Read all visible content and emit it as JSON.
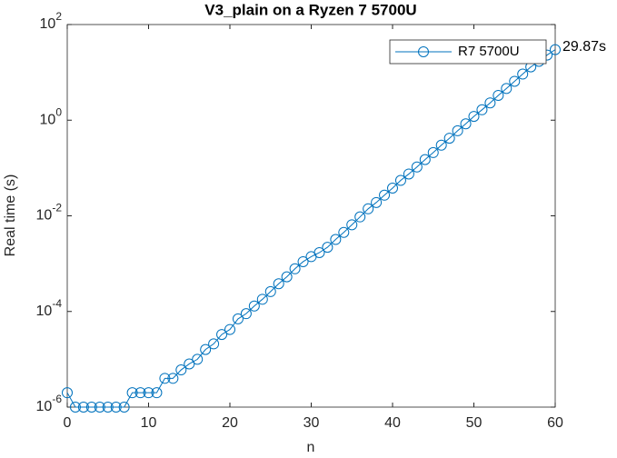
{
  "chart_data": {
    "type": "line",
    "title": "V3_plain on a Ryzen 7 5700U",
    "xlabel": "n",
    "ylabel": "Real time (s)",
    "x": [
      0,
      1,
      2,
      3,
      4,
      5,
      6,
      7,
      8,
      9,
      10,
      11,
      12,
      13,
      14,
      15,
      16,
      17,
      18,
      19,
      20,
      21,
      22,
      23,
      24,
      25,
      26,
      27,
      28,
      29,
      30,
      31,
      32,
      33,
      34,
      35,
      36,
      37,
      38,
      39,
      40,
      41,
      42,
      43,
      44,
      45,
      46,
      47,
      48,
      49,
      50,
      51,
      52,
      53,
      54,
      55,
      56,
      57,
      58,
      59,
      60
    ],
    "series": [
      {
        "name": "R7 5700U",
        "color": "#0072bd",
        "values": [
          2e-06,
          1e-06,
          1e-06,
          1e-06,
          1e-06,
          1e-06,
          1e-06,
          1e-06,
          2e-06,
          2e-06,
          2e-06,
          2e-06,
          4e-06,
          4e-06,
          6e-06,
          8e-06,
          1e-05,
          1.6e-05,
          2.1e-05,
          3.3e-05,
          4.2e-05,
          7e-05,
          9e-05,
          0.00013,
          0.00018,
          0.00026,
          0.00038,
          0.00053,
          0.00078,
          0.0011,
          0.0014,
          0.0017,
          0.0022,
          0.0032,
          0.0045,
          0.0065,
          0.0095,
          0.014,
          0.019,
          0.027,
          0.038,
          0.055,
          0.075,
          0.105,
          0.15,
          0.21,
          0.3,
          0.42,
          0.6,
          0.84,
          1.2,
          1.65,
          2.3,
          3.3,
          4.6,
          6.5,
          9.2,
          13,
          17,
          23,
          29.87
        ]
      }
    ],
    "annotation": "29.87s",
    "xlim": [
      0,
      60
    ],
    "xticks": [
      0,
      10,
      20,
      30,
      40,
      50,
      60
    ],
    "ylim": [
      1e-06,
      100
    ],
    "ylog": true,
    "yticks": [
      {
        "value": 1e-06,
        "label": "10^-6"
      },
      {
        "value": 0.0001,
        "label": "10^-4"
      },
      {
        "value": 0.01,
        "label": "10^-2"
      },
      {
        "value": 1,
        "label": "10^0"
      },
      {
        "value": 100,
        "label": "10^2"
      }
    ],
    "grid": false,
    "legend": "northeast"
  }
}
